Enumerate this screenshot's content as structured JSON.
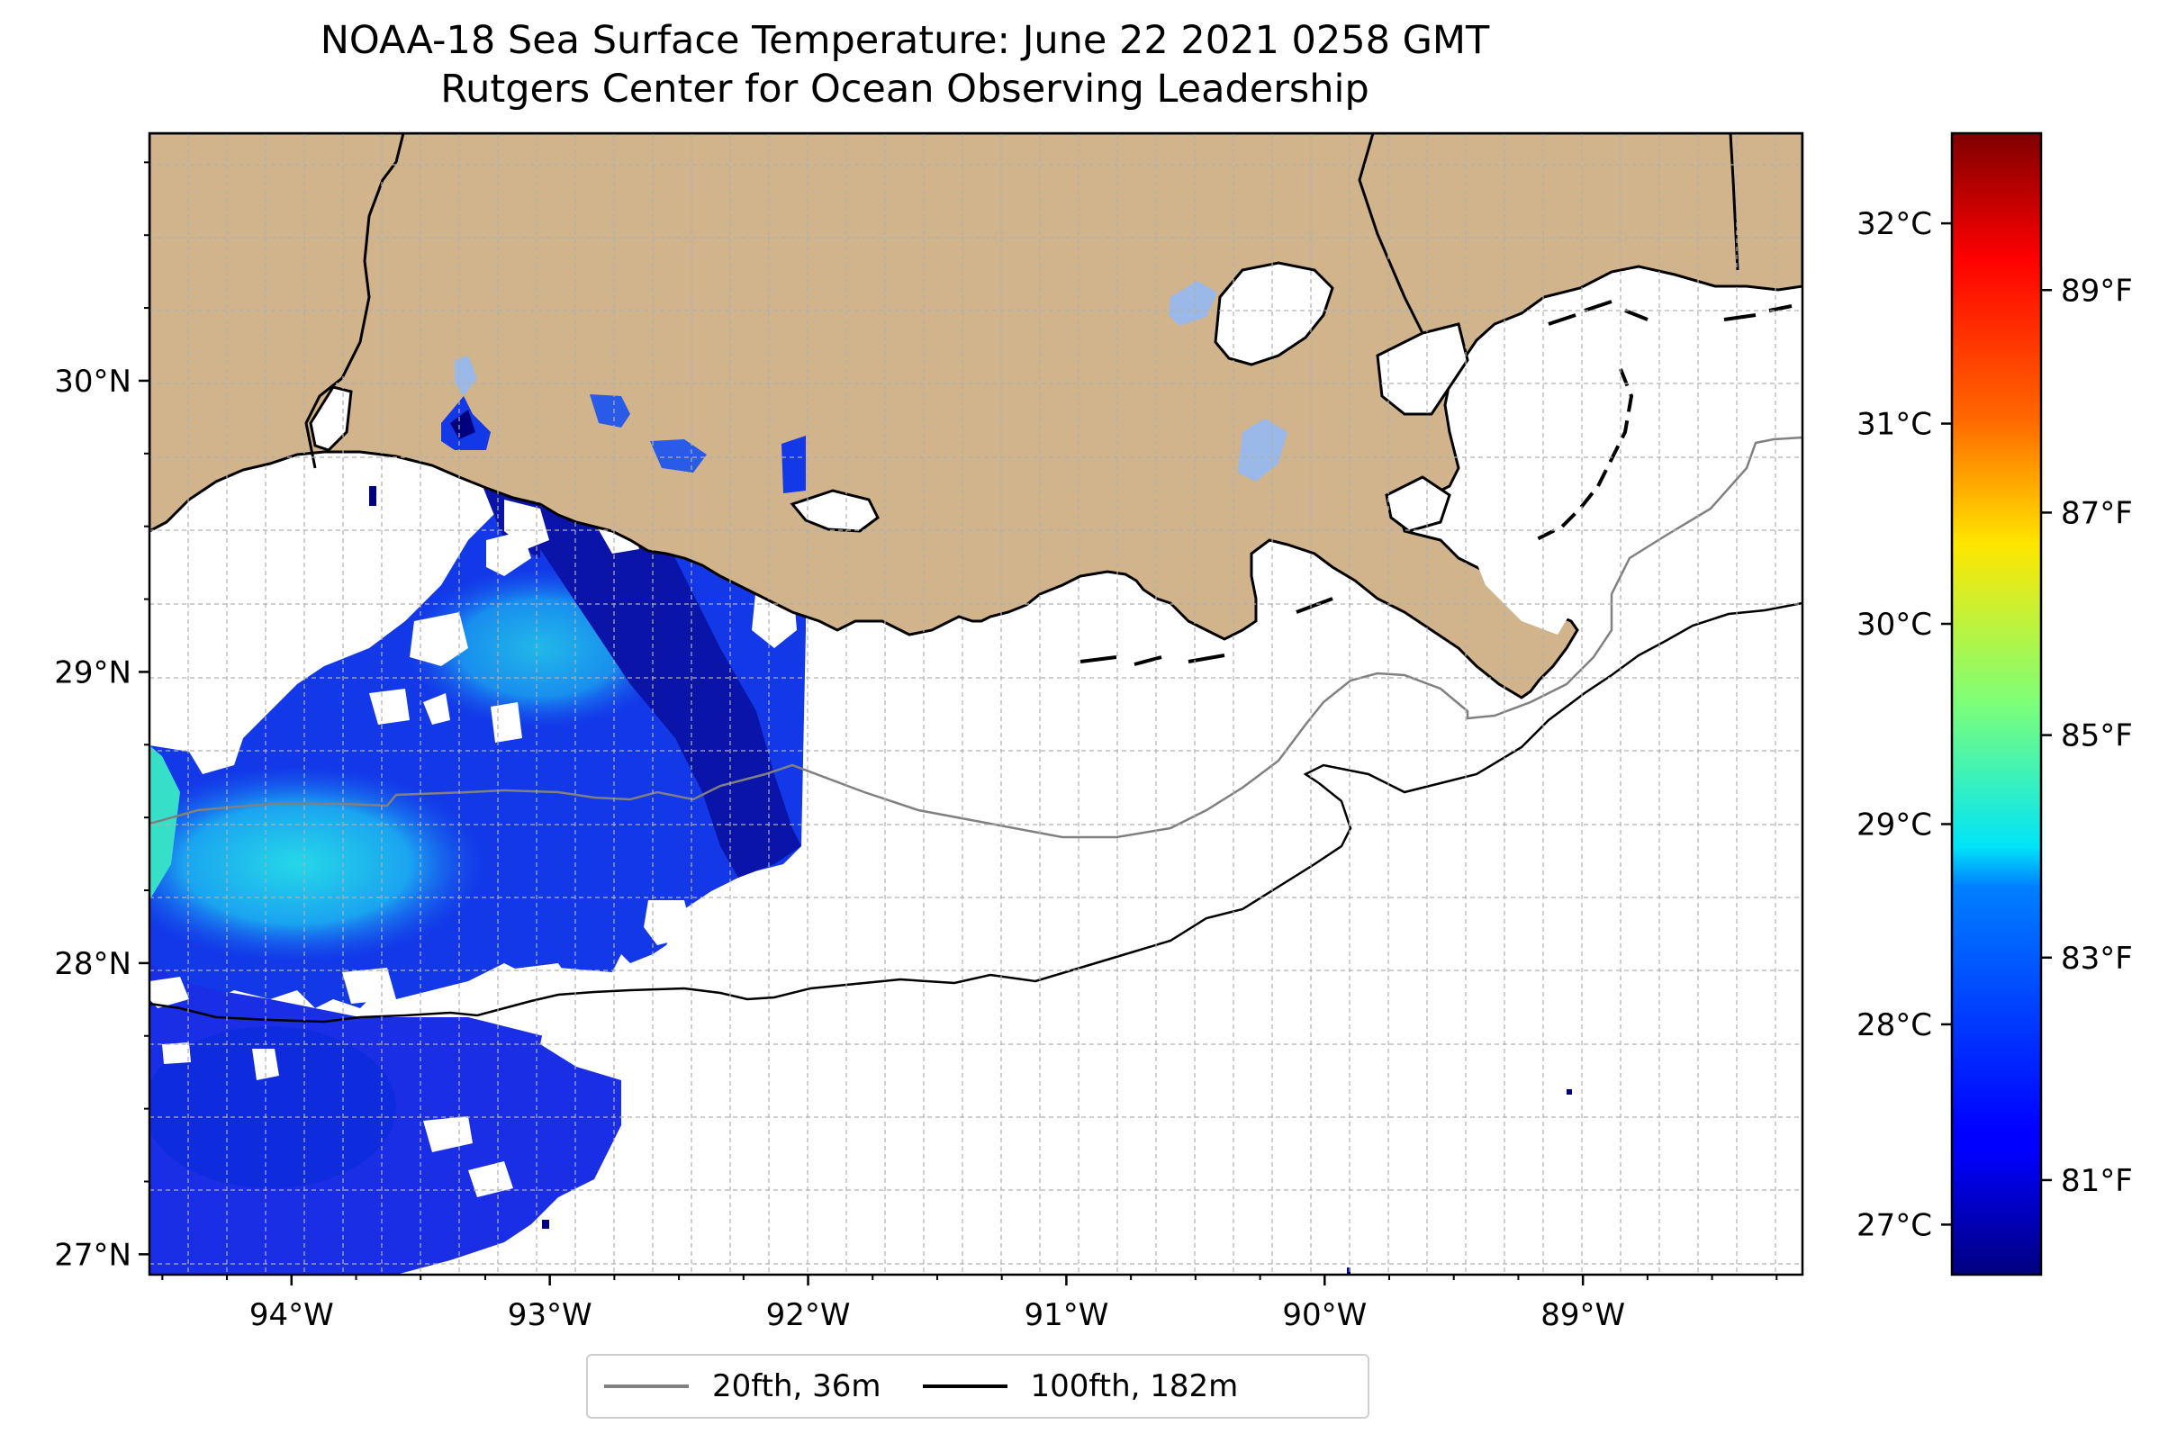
{
  "title": {
    "line1": "NOAA-18 Sea Surface Temperature: June 22 2021 0258 GMT",
    "line2": "Rutgers Center for Ocean Observing Leadership"
  },
  "map": {
    "extent": {
      "lon_min": -94.55,
      "lon_max": -88.15,
      "lat_min": 26.93,
      "lat_max": 30.85
    },
    "lon_ticks": [
      {
        "value": -94,
        "label": "94°W"
      },
      {
        "value": -93,
        "label": "93°W"
      },
      {
        "value": -92,
        "label": "92°W"
      },
      {
        "value": -91,
        "label": "91°W"
      },
      {
        "value": -90,
        "label": "90°W"
      },
      {
        "value": -89,
        "label": "89°W"
      }
    ],
    "lat_ticks": [
      {
        "value": 30,
        "label": "30°N"
      },
      {
        "value": 29,
        "label": "29°N"
      },
      {
        "value": 28,
        "label": "28°N"
      },
      {
        "value": 27,
        "label": "27°N"
      }
    ],
    "gridlines": "dashed",
    "land_color": "#d2b48c",
    "water_no_data_color": "#ffffff"
  },
  "colorbar": {
    "colormap": "jet",
    "range_c": [
      26.75,
      32.45
    ],
    "celsius_ticks": [
      {
        "value": 27,
        "label": "27°C"
      },
      {
        "value": 28,
        "label": "28°C"
      },
      {
        "value": 29,
        "label": "29°C"
      },
      {
        "value": 30,
        "label": "30°C"
      },
      {
        "value": 31,
        "label": "31°C"
      },
      {
        "value": 32,
        "label": "32°C"
      }
    ],
    "fahrenheit_ticks": [
      {
        "value": 81,
        "label": "81°F"
      },
      {
        "value": 83,
        "label": "83°F"
      },
      {
        "value": 85,
        "label": "85°F"
      },
      {
        "value": 87,
        "label": "87°F"
      },
      {
        "value": 89,
        "label": "89°F"
      }
    ]
  },
  "legend": {
    "items": [
      {
        "label": "20fth, 36m",
        "color": "#808080"
      },
      {
        "label": "100fth, 182m",
        "color": "#000000"
      }
    ]
  }
}
